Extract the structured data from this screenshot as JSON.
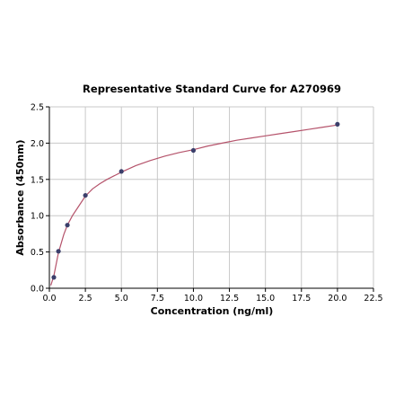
{
  "chart_data": {
    "type": "scatter",
    "title": "Representative Standard Curve for A270969",
    "xlabel": "Concentration (ng/ml)",
    "ylabel": "Absorbance (450nm)",
    "xlim": [
      0.0,
      22.5
    ],
    "ylim": [
      0.0,
      2.5
    ],
    "xticks": [
      "0.0",
      "2.5",
      "5.0",
      "7.5",
      "10.0",
      "12.5",
      "15.0",
      "17.5",
      "20.0",
      "22.5"
    ],
    "yticks": [
      "0.0",
      "0.5",
      "1.0",
      "1.5",
      "2.0",
      "2.5"
    ],
    "grid": true,
    "legend": "none",
    "points": {
      "x": [
        0.31,
        0.63,
        1.25,
        2.5,
        5.0,
        10.0,
        20.0
      ],
      "y": [
        0.15,
        0.51,
        0.87,
        1.28,
        1.61,
        1.9,
        2.26
      ]
    },
    "fit_curve": {
      "x": [
        0.1,
        0.31,
        0.63,
        1.0,
        1.25,
        1.6,
        2.0,
        2.5,
        3.0,
        3.5,
        4.0,
        5.0,
        6.0,
        7.0,
        8.0,
        9.0,
        10.0,
        11.0,
        12.0,
        13.0,
        14.0,
        15.0,
        16.0,
        17.0,
        18.0,
        19.0,
        20.0
      ],
      "y": [
        0.04,
        0.17,
        0.49,
        0.74,
        0.87,
        1.0,
        1.12,
        1.27,
        1.37,
        1.44,
        1.5,
        1.6,
        1.69,
        1.76,
        1.82,
        1.87,
        1.91,
        1.96,
        2.0,
        2.04,
        2.07,
        2.1,
        2.13,
        2.16,
        2.19,
        2.22,
        2.25
      ]
    },
    "colors": {
      "points": "#3b3f6b",
      "curve": "#b5536b",
      "grid": "#c8c8c8"
    }
  }
}
